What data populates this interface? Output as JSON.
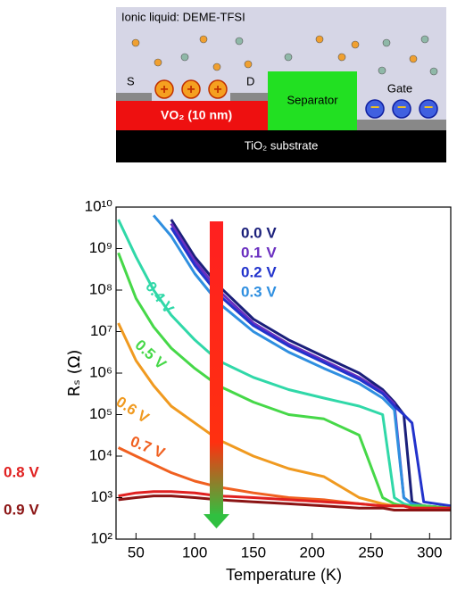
{
  "diagram": {
    "liquid": "Ionic liquid: DEME-TFSI",
    "source": "S",
    "drain": "D",
    "channel": "VO₂ (10 nm)",
    "separator": "Separator",
    "gate": "Gate",
    "substrate": "TiO₂ substrate"
  },
  "chart_data": {
    "type": "line",
    "xlabel": "Temperature (K)",
    "ylabel": "Rₛ (Ω)",
    "x": [
      35,
      50,
      65,
      80,
      100,
      120,
      150,
      180,
      210,
      240,
      260,
      270,
      278,
      285,
      295,
      318
    ],
    "xlim": [
      33,
      318
    ],
    "xticks": [
      50,
      100,
      150,
      200,
      250,
      300
    ],
    "ylim": [
      100,
      10000000000
    ],
    "log_y": true,
    "yticks": [
      {
        "value": 100,
        "label": "10²"
      },
      {
        "value": 1000,
        "label": "10³"
      },
      {
        "value": 10000,
        "label": "10⁴"
      },
      {
        "value": 100000,
        "label": "10⁵"
      },
      {
        "value": 1000000,
        "label": "10⁶"
      },
      {
        "value": 10000000,
        "label": "10⁷"
      },
      {
        "value": 100000000,
        "label": "10⁸"
      },
      {
        "value": 1000000000,
        "label": "10⁹"
      },
      {
        "value": 10000000000,
        "label": "10¹⁰"
      }
    ],
    "series": [
      {
        "name": "0.0 V",
        "color": "#1a1f7a",
        "values": [
          null,
          null,
          null,
          5000000000.0,
          630000000.0,
          130000000.0,
          20000000.0,
          6300000.0,
          2500000.0,
          1000000.0,
          400000.0,
          200000.0,
          100000.0,
          790,
          630,
          560
        ]
      },
      {
        "name": "0.1 V",
        "color": "#6a2fc0",
        "values": [
          null,
          null,
          null,
          4000000000.0,
          500000000.0,
          100000000.0,
          16000000.0,
          5000000.0,
          2000000.0,
          790000.0,
          350000.0,
          180000.0,
          1000,
          710,
          630,
          560
        ]
      },
      {
        "name": "0.2 V",
        "color": "#2233cc",
        "values": [
          null,
          null,
          null,
          3200000000.0,
          400000000.0,
          79000000.0,
          14000000.0,
          4500000.0,
          1800000.0,
          710000.0,
          320000.0,
          160000.0,
          100000.0,
          63000.0,
          790,
          630
        ]
      },
      {
        "name": "0.3 V",
        "color": "#2f8fe0",
        "values": [
          null,
          null,
          6300000000.0,
          2000000000.0,
          250000000.0,
          50000000.0,
          10000000.0,
          3200000.0,
          1300000.0,
          560000.0,
          250000.0,
          130000.0,
          1000,
          710,
          630,
          560
        ]
      },
      {
        "name": "0.4 V",
        "color": "#30d8a8",
        "values": [
          5000000000.0,
          630000000.0,
          100000000.0,
          25000000.0,
          6300000.0,
          2000000.0,
          790000.0,
          400000.0,
          250000.0,
          160000.0,
          100000.0,
          1000,
          710,
          630,
          630,
          560
        ]
      },
      {
        "name": "0.5 V",
        "color": "#46d848",
        "values": [
          790000000.0,
          63000000.0,
          13000000.0,
          4000000.0,
          1300000.0,
          500000.0,
          200000.0,
          100000.0,
          79000.0,
          32000.0,
          1000,
          710,
          630,
          630,
          630,
          560
        ]
      },
      {
        "name": "0.6 V",
        "color": "#f09a20",
        "values": [
          16000000.0,
          2000000.0,
          500000.0,
          160000.0,
          63000.0,
          25000.0,
          10000.0,
          5000,
          3200,
          1000,
          710,
          630,
          630,
          560,
          560,
          500
        ]
      },
      {
        "name": "0.7 V",
        "color": "#f06020",
        "values": [
          16000.0,
          10000.0,
          6300,
          4000,
          2500,
          1800,
          1300,
          1000,
          890,
          710,
          630,
          630,
          630,
          560,
          560,
          560
        ]
      },
      {
        "name": "0.8 V",
        "color": "#e02020",
        "values": [
          1100,
          1300,
          1400,
          1400,
          1300,
          1100,
          1000,
          890,
          790,
          710,
          630,
          630,
          630,
          560,
          560,
          560
        ]
      },
      {
        "name": "0.9 V",
        "color": "#8b1414",
        "values": [
          890,
          1000,
          1100,
          1100,
          1000,
          890,
          790,
          710,
          630,
          560,
          560,
          500,
          500,
          500,
          500,
          500
        ]
      }
    ]
  }
}
